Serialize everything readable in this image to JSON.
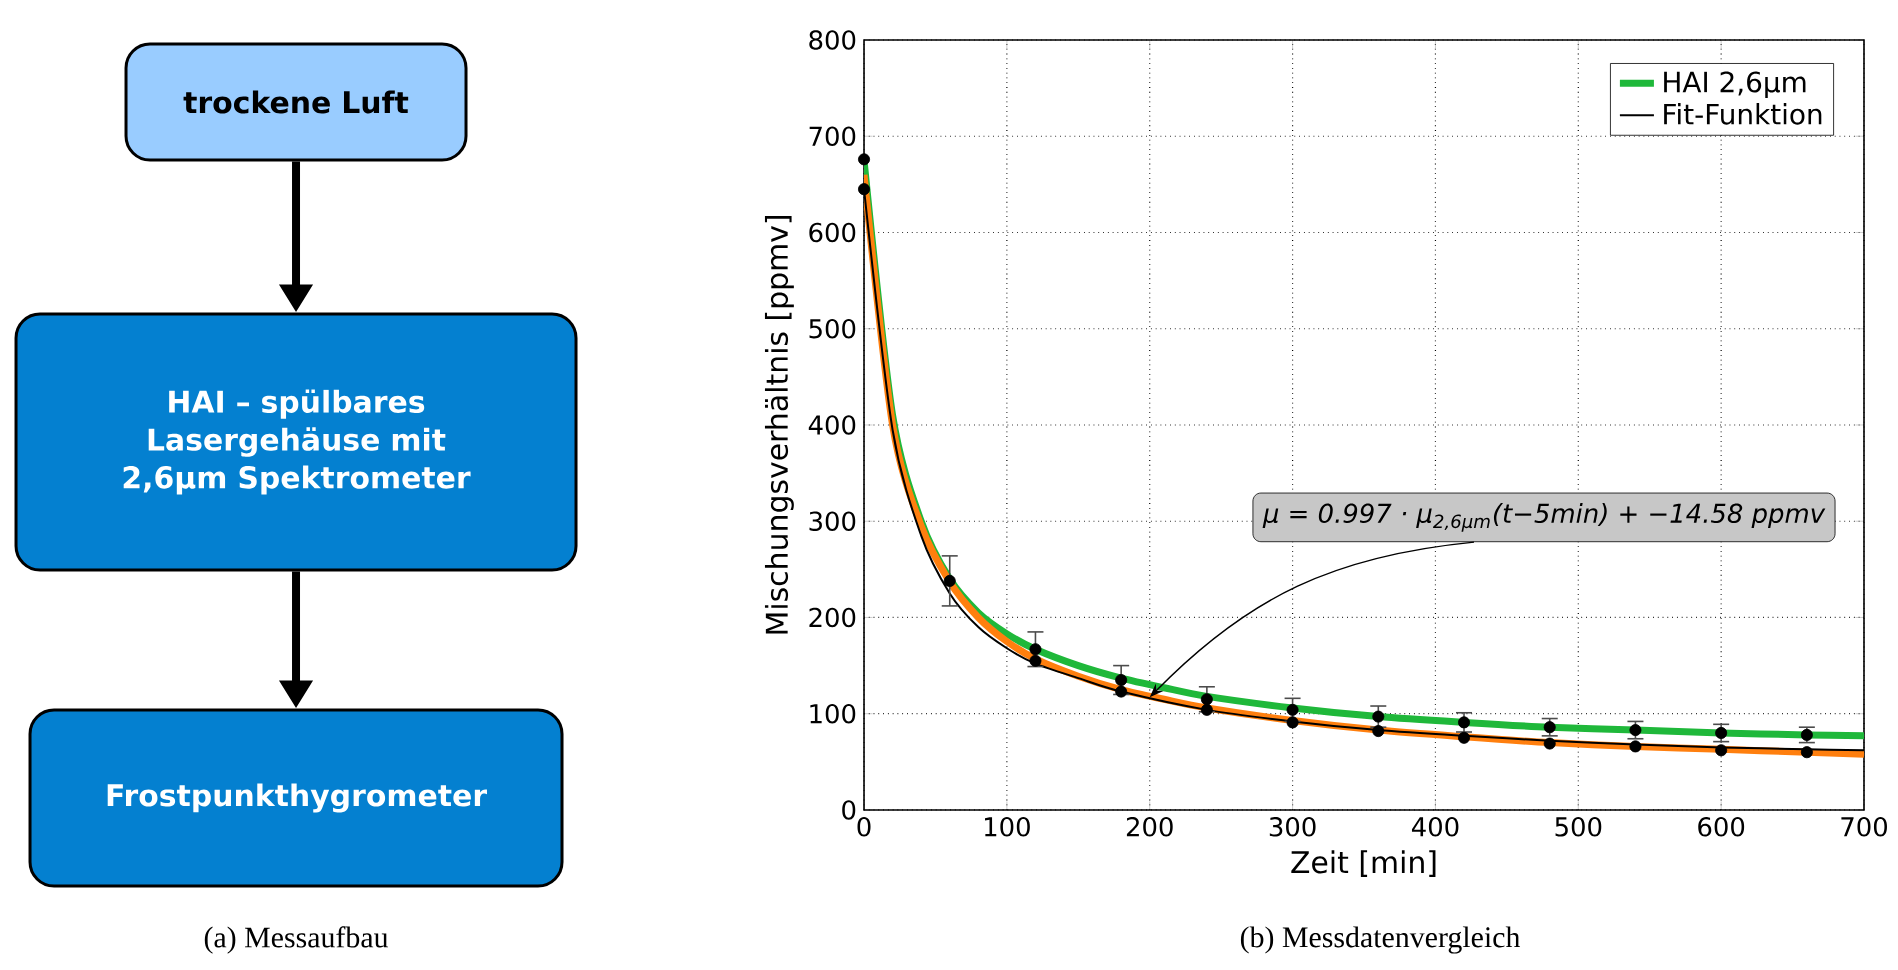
{
  "chart_data": [
    {
      "type": "other",
      "title": "(a) Messaufbau",
      "annotations": [
        "trockene Luft",
        "HAI – spülbares Lasergehäuse mit 2,6µm Spektrometer",
        "Frostpunkthygrometer"
      ]
    },
    {
      "type": "line",
      "title": "(b) Messdatenvergleich",
      "xlabel": "Zeit [min]",
      "ylabel": "Mischungsverhältnis [ppmv]",
      "xlim": [
        0,
        700
      ],
      "ylim": [
        0,
        800
      ],
      "xticks": [
        0,
        100,
        200,
        300,
        400,
        500,
        600,
        700
      ],
      "yticks": [
        0,
        100,
        200,
        300,
        400,
        500,
        600,
        700,
        800
      ],
      "grid": true,
      "legend": "top right",
      "series": [
        {
          "name": "HAI 2,6µm",
          "color": "#1fb83a",
          "type": "line",
          "x": [
            0,
            20,
            40,
            60,
            80,
            100,
            120,
            150,
            180,
            210,
            240,
            300,
            360,
            420,
            480,
            540,
            600,
            660,
            700
          ],
          "values": [
            675,
            410,
            300,
            240,
            205,
            183,
            167,
            150,
            137,
            127,
            118,
            106,
            97,
            91,
            86,
            83,
            80,
            78,
            77
          ]
        },
        {
          "color": "#ff7f0e",
          "type": "line",
          "x": [
            0,
            20,
            40,
            60,
            80,
            100,
            120,
            150,
            180,
            210,
            240,
            300,
            360,
            420,
            480,
            540,
            600,
            660,
            700
          ],
          "values": [
            660,
            400,
            295,
            237,
            200,
            175,
            157,
            139,
            125,
            115,
            106,
            93,
            83,
            76,
            70,
            66,
            63,
            60,
            58
          ]
        },
        {
          "name": "Fit-Funktion",
          "color": "#000000",
          "type": "line",
          "x": [
            0,
            20,
            40,
            60,
            80,
            100,
            120,
            150,
            180,
            240,
            300,
            360,
            420,
            480,
            540,
            600,
            660,
            700
          ],
          "values": [
            645,
            395,
            285,
            225,
            190,
            168,
            152,
            137,
            123,
            104,
            92,
            83,
            77,
            72,
            68,
            65,
            63,
            62
          ]
        },
        {
          "color": "#000000",
          "type": "scatter",
          "x": [
            0,
            60,
            120,
            180,
            240,
            300,
            360,
            420,
            480,
            540,
            600,
            660
          ],
          "values": [
            676,
            238,
            167,
            135,
            115,
            104,
            97,
            91,
            86,
            83,
            80,
            78
          ],
          "errors": [
            null,
            26,
            18,
            15,
            13,
            12,
            11,
            10,
            9,
            9,
            9,
            8
          ]
        },
        {
          "color": "#000000",
          "type": "scatter",
          "x": [
            0,
            120,
            180,
            240,
            300,
            360,
            420,
            480,
            540,
            600,
            660
          ],
          "values": [
            645,
            155,
            123,
            104,
            91,
            82,
            75,
            69,
            66,
            62,
            60
          ]
        }
      ],
      "annotations": [
        {
          "text": "μ = 0.997 · μ$_{2,6µm}$(t−5min) + −14.58 ppmv",
          "x": 200,
          "y": 117
        }
      ]
    }
  ]
}
